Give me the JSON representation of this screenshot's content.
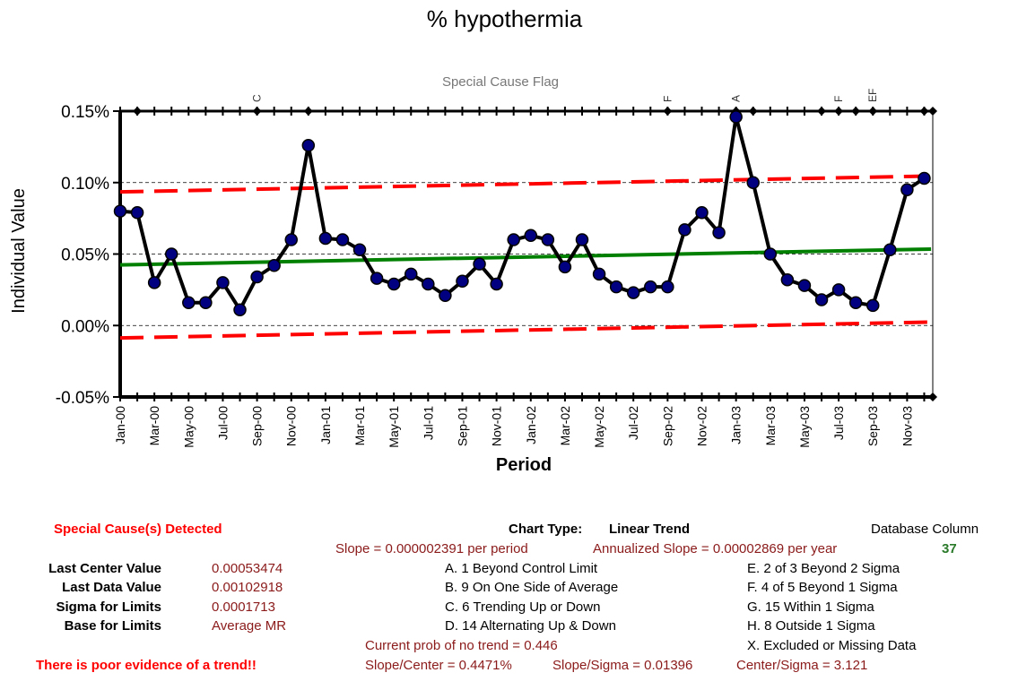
{
  "chart_data": {
    "type": "line",
    "title": "% hypothermia",
    "xlabel": "Period",
    "ylabel": "Individual Value",
    "flag_title": "Special Cause Flag",
    "ylim": [
      -0.0005,
      0.0015
    ],
    "yticks": [
      {
        "value": 0.0015,
        "label": "0.15%"
      },
      {
        "value": 0.001,
        "label": "0.10%"
      },
      {
        "value": 0.0005,
        "label": "0.05%"
      },
      {
        "value": 0.0,
        "label": "0.00%"
      },
      {
        "value": -0.0005,
        "label": "-0.05%"
      }
    ],
    "x_tick_labels": [
      "Jan-00",
      "Mar-00",
      "May-00",
      "Jul-00",
      "Sep-00",
      "Nov-00",
      "Jan-01",
      "Mar-01",
      "May-01",
      "Jul-01",
      "Sep-01",
      "Nov-01",
      "Jan-02",
      "Mar-02",
      "May-02",
      "Jul-02",
      "Sep-02",
      "Nov-02",
      "Jan-03",
      "Mar-03",
      "May-03",
      "Jul-03",
      "Sep-03",
      "Nov-03"
    ],
    "values": [
      0.0008,
      0.00079,
      0.0003,
      0.0005,
      0.00016,
      0.00016,
      0.0003,
      0.00011,
      0.00034,
      0.00042,
      0.0006,
      0.00126,
      0.00061,
      0.0006,
      0.00053,
      0.00033,
      0.00029,
      0.00036,
      0.00029,
      0.00021,
      0.00031,
      0.00043,
      0.00029,
      0.0006,
      0.00063,
      0.0006,
      0.00041,
      0.0006,
      0.00036,
      0.00027,
      0.00023,
      0.00027,
      0.00027,
      0.00067,
      0.00079,
      0.00065,
      0.00146,
      0.001,
      0.0005,
      0.00032,
      0.00028,
      0.00018,
      0.00025,
      0.00016,
      0.00014,
      0.00053,
      0.00095,
      0.00103
    ],
    "center_line": {
      "start": 0.000424,
      "end": 0.00053474
    },
    "ucl_line": {
      "start": 0.000935,
      "end": 0.001046
    },
    "lcl_line": {
      "start": -8.7e-05,
      "end": 2.4e-05
    },
    "flags": [
      {
        "index": 8,
        "label": "C"
      },
      {
        "index": 32,
        "label": "F"
      },
      {
        "index": 36,
        "label": "A"
      },
      {
        "index": 42,
        "label": "F"
      },
      {
        "index": 44,
        "label": "EF"
      }
    ],
    "flag_markers": [
      1,
      11,
      8,
      32,
      36,
      37,
      41,
      42,
      43,
      44,
      47
    ],
    "colors": {
      "data": "#000000",
      "points": "#000080",
      "center": "#008000",
      "limits": "#ff0000"
    }
  },
  "summary": {
    "special_cause": "Special Cause(s) Detected",
    "rows": [
      {
        "label": "Last Center Value",
        "value": "0.00053474"
      },
      {
        "label": "Last Data Value",
        "value": "0.00102918"
      },
      {
        "label": "Sigma for Limits",
        "value": "0.0001713"
      },
      {
        "label": "Base for Limits",
        "value": "Average MR"
      }
    ],
    "trend_note": "There is poor evidence of a trend!!",
    "chart_type_label": "Chart Type:",
    "chart_type_value": "Linear Trend",
    "database_column_label": "Database Column",
    "database_column_value": "37",
    "slope": "Slope = 0.000002391 per period",
    "annualized_slope": "Annualized Slope = 0.00002869 per year",
    "tests_left": [
      "A. 1 Beyond Control Limit",
      "B. 9 On One Side of Average",
      "C. 6 Trending Up or Down",
      "D. 14 Alternating  Up & Down"
    ],
    "tests_right": [
      "E. 2 of 3 Beyond 2 Sigma",
      "F. 4 of 5 Beyond 1 Sigma",
      "G. 15 Within 1 Sigma",
      "H. 8 Outside 1 Sigma",
      "X. Excluded or Missing Data"
    ],
    "prob_no_trend": "Current prob of no trend = 0.446",
    "slope_center": "Slope/Center = 0.4471%",
    "slope_sigma": "Slope/Sigma = 0.01396",
    "center_sigma": "Center/Sigma = 3.121"
  }
}
